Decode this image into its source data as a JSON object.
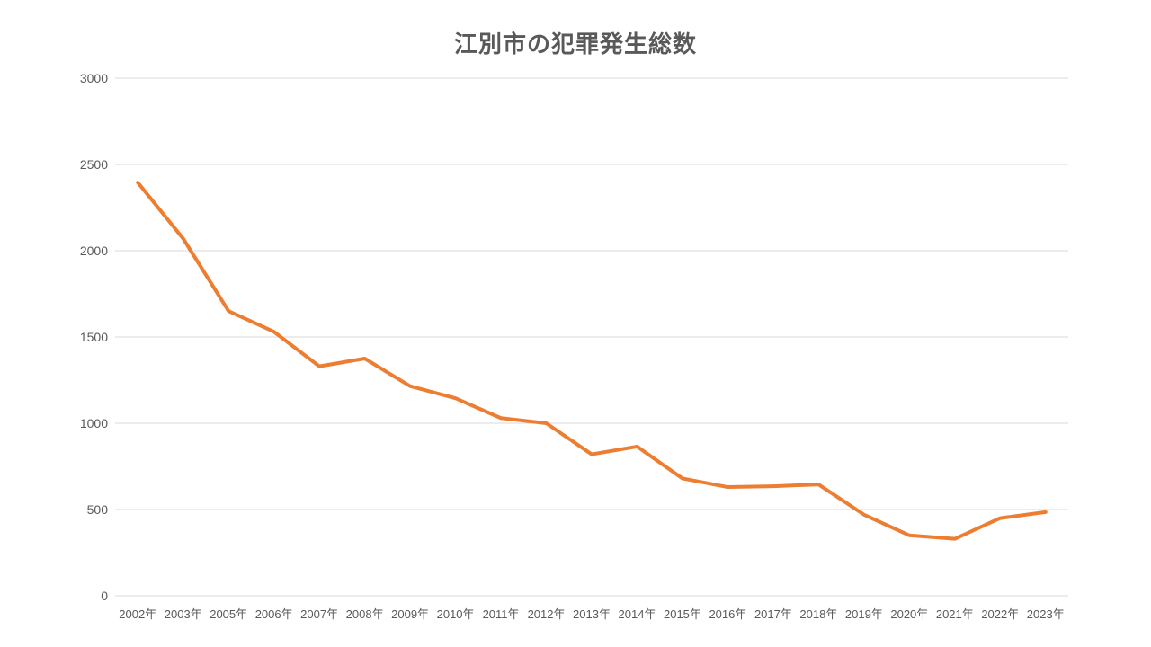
{
  "title": "江別市の犯罪発生総数",
  "colors": {
    "background": "#FFFFFF",
    "line": "#ED7D31",
    "title_text": "#595959",
    "axis_text": "#595959",
    "gridline": "#D9D9D9"
  },
  "chart_data": {
    "type": "line",
    "title": "江別市の犯罪発生総数",
    "categories": [
      "2002年",
      "2003年",
      "2005年",
      "2006年",
      "2007年",
      "2008年",
      "2009年",
      "2010年",
      "2011年",
      "2012年",
      "2013年",
      "2014年",
      "2015年",
      "2016年",
      "2017年",
      "2018年",
      "2019年",
      "2020年",
      "2021年",
      "2022年",
      "2023年"
    ],
    "values": [
      2395,
      2070,
      1650,
      1530,
      1330,
      1375,
      1215,
      1145,
      1030,
      1000,
      820,
      865,
      680,
      630,
      635,
      645,
      470,
      350,
      330,
      450,
      485
    ],
    "xlabel": "",
    "ylabel": "",
    "ylim": [
      0,
      3000
    ],
    "yticks": [
      0,
      500,
      1000,
      1500,
      2000,
      2500,
      3000
    ],
    "grid": true,
    "legend": false,
    "legend_position": "none"
  }
}
